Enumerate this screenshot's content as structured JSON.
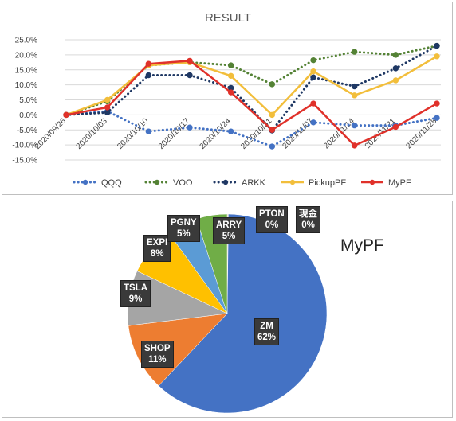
{
  "chart_data": [
    {
      "type": "line",
      "title": "RESULT",
      "categories": [
        "2020/09/26",
        "2020/10/03",
        "2020/10/10",
        "2020/10/17",
        "2020/10/24",
        "2020/10/31",
        "2020/11/07",
        "2020/11/14",
        "2020/11/21",
        "2020/11/28"
      ],
      "x_tick_labels": [
        "2020/09/26",
        "2020/10/03",
        "2020/10/10",
        "2020/10/17",
        "2020/10/24",
        "2020/10/31",
        "2020/11/07",
        "2020/11/14",
        "2020/11/21",
        "2020/11/28"
      ],
      "y_tick_labels": [
        "-15.0%",
        "-10.0%",
        "-5.0%",
        "0.0%",
        "5.0%",
        "10.0%",
        "15.0%",
        "20.0%",
        "25.0%"
      ],
      "ylim": [
        -15,
        25
      ],
      "y_unit": "%",
      "grid": true,
      "legend_position": "bottom",
      "series": [
        {
          "name": "QQQ",
          "color": "#4472C4",
          "style": "dotted",
          "values": [
            0.0,
            1.2,
            -5.5,
            -4.2,
            -5.5,
            -10.5,
            -2.5,
            -3.5,
            -3.5,
            -1.0
          ]
        },
        {
          "name": "VOO",
          "color": "#548235",
          "style": "dotted",
          "values": [
            0.0,
            4.5,
            16.5,
            17.5,
            16.5,
            10.2,
            18.2,
            21.0,
            20.0,
            23.0
          ]
        },
        {
          "name": "ARKK",
          "color": "#1F3864",
          "style": "dotted",
          "values": [
            0.0,
            0.8,
            13.2,
            13.2,
            9.0,
            -5.2,
            12.5,
            9.5,
            15.5,
            23.0
          ]
        },
        {
          "name": "PickupPF",
          "color": "#F2BE3B",
          "style": "solid",
          "values": [
            0.0,
            5.0,
            16.5,
            17.5,
            13.0,
            0.0,
            14.5,
            6.5,
            11.5,
            19.5
          ]
        },
        {
          "name": "MyPF",
          "color": "#E0312A",
          "style": "solid",
          "values": [
            0.0,
            2.5,
            17.0,
            18.0,
            7.5,
            -5.0,
            3.8,
            -10.2,
            -4.0,
            3.8
          ]
        }
      ]
    },
    {
      "type": "pie",
      "title": "MyPF",
      "slices": [
        {
          "label": "ZM",
          "pct_label": "62%",
          "value": 62,
          "color": "#4472C4"
        },
        {
          "label": "SHOP",
          "pct_label": "11%",
          "value": 11,
          "color": "#ED7D31"
        },
        {
          "label": "TSLA",
          "pct_label": "9%",
          "value": 9,
          "color": "#A5A5A5"
        },
        {
          "label": "EXPI",
          "pct_label": "8%",
          "value": 8,
          "color": "#FFC000"
        },
        {
          "label": "PGNY",
          "pct_label": "5%",
          "value": 5,
          "color": "#5B9BD5"
        },
        {
          "label": "ARRY",
          "pct_label": "5%",
          "value": 5,
          "color": "#70AD47"
        },
        {
          "label": "PTON",
          "pct_label": "0%",
          "value": 0.1,
          "color": "#264478"
        },
        {
          "label": "現金",
          "pct_label": "0%",
          "value": 0.1,
          "color": "#9E480E"
        }
      ]
    }
  ]
}
